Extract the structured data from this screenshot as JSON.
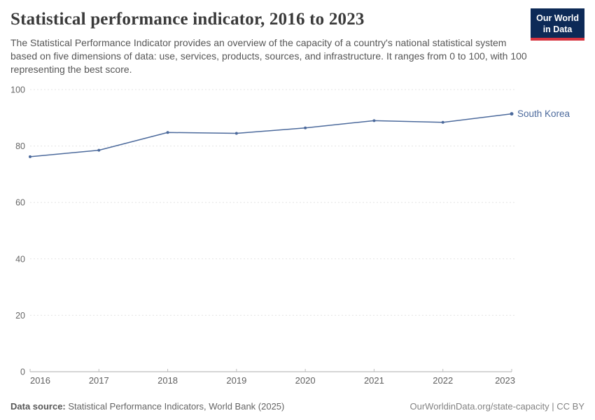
{
  "header": {
    "title": "Statistical performance indicator, 2016 to 2023",
    "subtitle": "The Statistical Performance Indicator provides an overview of the capacity of a country's national statistical system based on five dimensions of data: use, services, products, sources, and infrastructure. It ranges from 0 to 100, with 100 representing the best score."
  },
  "logo": {
    "line1": "Our World",
    "line2": "in Data",
    "bg_color": "#0d2a57",
    "accent_color": "#d7333f"
  },
  "chart_data": {
    "type": "line",
    "title": "Statistical performance indicator, 2016 to 2023",
    "x": [
      2016,
      2017,
      2018,
      2019,
      2020,
      2021,
      2022,
      2023
    ],
    "series": [
      {
        "name": "South Korea",
        "values": [
          76.2,
          78.5,
          84.8,
          84.5,
          86.4,
          89.0,
          88.4,
          91.4
        ],
        "color": "#4c6a9c"
      }
    ],
    "ylim": [
      0,
      100
    ],
    "yticks": [
      0,
      20,
      40,
      60,
      80,
      100
    ],
    "grid": "horizontal-dashed",
    "legend_position": "end-of-line-label",
    "colors": {
      "gridline": "#e3e3e3",
      "axis_line": "#adadad",
      "tick_mark": "#bdbdbd",
      "y_tick_label": "#666666",
      "x_tick_label": "#606060"
    }
  },
  "footer": {
    "source_label": "Data source:",
    "source_text": " Statistical Performance Indicators, World Bank (2025)",
    "credit": "OurWorldinData.org/state-capacity | CC BY"
  }
}
